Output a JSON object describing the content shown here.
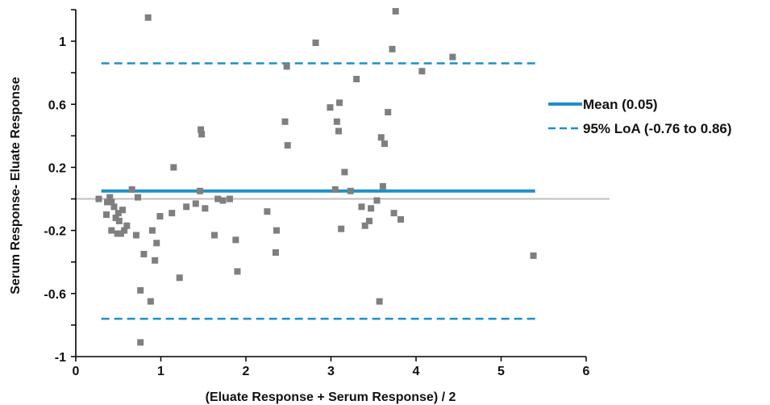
{
  "chart_data": {
    "type": "scatter",
    "xlabel": "(Eluate Response + Serum Response) / 2",
    "ylabel": "Serum Response- Eluate Response",
    "xlim": [
      0,
      6
    ],
    "ylim": [
      -1,
      1.2
    ],
    "x_ticks": [
      "0",
      "1",
      "2",
      "3",
      "4",
      "5",
      "6"
    ],
    "y_ticks": [
      "1",
      "0.6",
      "0.2",
      "-0.2",
      "-0.6",
      "-1"
    ],
    "grid": false,
    "legend_position": "right",
    "colors": {
      "points": "#7f7f7f",
      "mean": "#1f8fc9",
      "loa": "#1f8fc9",
      "zero": "#bfbfbf",
      "axis": "#000000"
    },
    "reference_lines": {
      "zero": 0,
      "mean": {
        "value": 0.05,
        "label": "Mean (0.05)",
        "x_range": [
          0.3,
          5.4
        ]
      },
      "loa": {
        "upper": 0.86,
        "lower": -0.76,
        "label": "95% LoA (-0.76 to 0.86)",
        "x_range": [
          0.3,
          5.4
        ]
      }
    },
    "points": [
      [
        0.27,
        0.0
      ],
      [
        0.36,
        -0.1
      ],
      [
        0.37,
        -0.02
      ],
      [
        0.4,
        0.01
      ],
      [
        0.42,
        -0.02
      ],
      [
        0.42,
        -0.2
      ],
      [
        0.45,
        -0.05
      ],
      [
        0.47,
        -0.12
      ],
      [
        0.49,
        -0.22
      ],
      [
        0.5,
        -0.09
      ],
      [
        0.51,
        -0.14
      ],
      [
        0.53,
        -0.22
      ],
      [
        0.55,
        -0.07
      ],
      [
        0.57,
        -0.2
      ],
      [
        0.6,
        -0.17
      ],
      [
        0.66,
        0.06
      ],
      [
        0.71,
        -0.23
      ],
      [
        0.73,
        0.01
      ],
      [
        0.76,
        -0.58
      ],
      [
        0.76,
        -0.91
      ],
      [
        0.8,
        -0.35
      ],
      [
        0.85,
        1.15
      ],
      [
        0.88,
        -0.65
      ],
      [
        0.9,
        -0.2
      ],
      [
        0.93,
        -0.39
      ],
      [
        0.95,
        -0.28
      ],
      [
        0.99,
        -0.11
      ],
      [
        1.13,
        -0.09
      ],
      [
        1.15,
        0.2
      ],
      [
        1.22,
        -0.5
      ],
      [
        1.3,
        -0.05
      ],
      [
        1.41,
        -0.03
      ],
      [
        1.46,
        0.05
      ],
      [
        1.47,
        0.44
      ],
      [
        1.48,
        0.41
      ],
      [
        1.52,
        -0.06
      ],
      [
        1.63,
        -0.23
      ],
      [
        1.67,
        0.0
      ],
      [
        1.73,
        -0.01
      ],
      [
        1.81,
        0.0
      ],
      [
        1.88,
        -0.26
      ],
      [
        1.9,
        -0.46
      ],
      [
        2.25,
        -0.08
      ],
      [
        2.35,
        -0.34
      ],
      [
        2.36,
        -0.2
      ],
      [
        2.46,
        0.49
      ],
      [
        2.48,
        0.84
      ],
      [
        2.49,
        0.34
      ],
      [
        2.82,
        0.99
      ],
      [
        2.99,
        0.58
      ],
      [
        3.05,
        0.06
      ],
      [
        3.07,
        0.49
      ],
      [
        3.09,
        0.43
      ],
      [
        3.1,
        0.61
      ],
      [
        3.12,
        -0.19
      ],
      [
        3.16,
        0.17
      ],
      [
        3.23,
        0.05
      ],
      [
        3.3,
        0.76
      ],
      [
        3.36,
        -0.05
      ],
      [
        3.4,
        -0.17
      ],
      [
        3.45,
        -0.14
      ],
      [
        3.47,
        -0.06
      ],
      [
        3.54,
        -0.01
      ],
      [
        3.57,
        -0.65
      ],
      [
        3.59,
        0.39
      ],
      [
        3.61,
        0.08
      ],
      [
        3.63,
        0.35
      ],
      [
        3.67,
        0.55
      ],
      [
        3.72,
        0.95
      ],
      [
        3.74,
        -0.09
      ],
      [
        3.76,
        1.19
      ],
      [
        3.82,
        -0.13
      ],
      [
        4.07,
        0.81
      ],
      [
        4.43,
        0.9
      ],
      [
        5.38,
        -0.36
      ]
    ]
  }
}
